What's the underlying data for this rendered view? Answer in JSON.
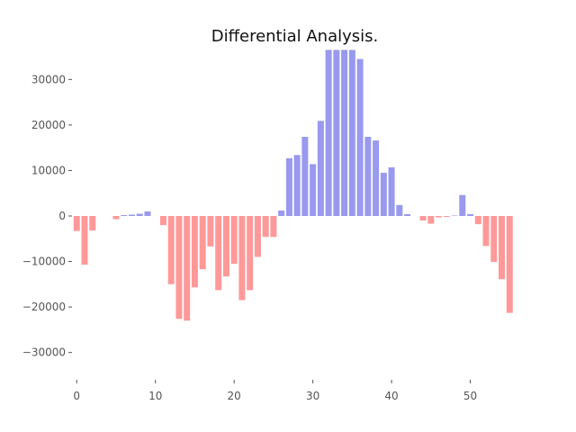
{
  "chart_data": {
    "type": "bar",
    "title": "Differential Analysis.",
    "xlabel": "",
    "ylabel": "",
    "x": [
      0,
      1,
      2,
      3,
      4,
      5,
      6,
      7,
      8,
      9,
      10,
      11,
      12,
      13,
      14,
      15,
      16,
      17,
      18,
      19,
      20,
      21,
      22,
      23,
      24,
      25,
      26,
      27,
      28,
      29,
      30,
      31,
      32,
      33,
      34,
      35,
      36,
      37,
      38,
      39,
      40,
      41,
      42,
      43,
      44,
      45,
      46,
      47,
      48,
      49,
      50,
      51,
      52,
      53,
      54,
      55
    ],
    "values": [
      -3300,
      -10700,
      -3200,
      0,
      0,
      -700,
      200,
      300,
      500,
      1000,
      0,
      -2000,
      -15000,
      -22600,
      -23000,
      -15700,
      -11700,
      -6700,
      -16300,
      -13300,
      -10500,
      -18500,
      -16300,
      -9000,
      -4600,
      -4600,
      1200,
      12700,
      13400,
      17400,
      11400,
      20900,
      36500,
      36500,
      36500,
      36500,
      34500,
      17400,
      16600,
      9500,
      10700,
      2400,
      400,
      0,
      -1000,
      -1700,
      -300,
      -200,
      100,
      4600,
      400,
      -1800,
      -6600,
      -10100,
      -13900,
      -21300
    ],
    "positive_color": "#9999ee",
    "negative_color": "#ff9999",
    "xlim": [
      -0.6,
      56
    ],
    "ylim": [
      -36000,
      36000
    ],
    "xticks": [
      0,
      10,
      20,
      30,
      40,
      50
    ],
    "yticks": [
      -30000,
      -20000,
      -10000,
      0,
      10000,
      20000,
      30000
    ],
    "grid": false
  }
}
